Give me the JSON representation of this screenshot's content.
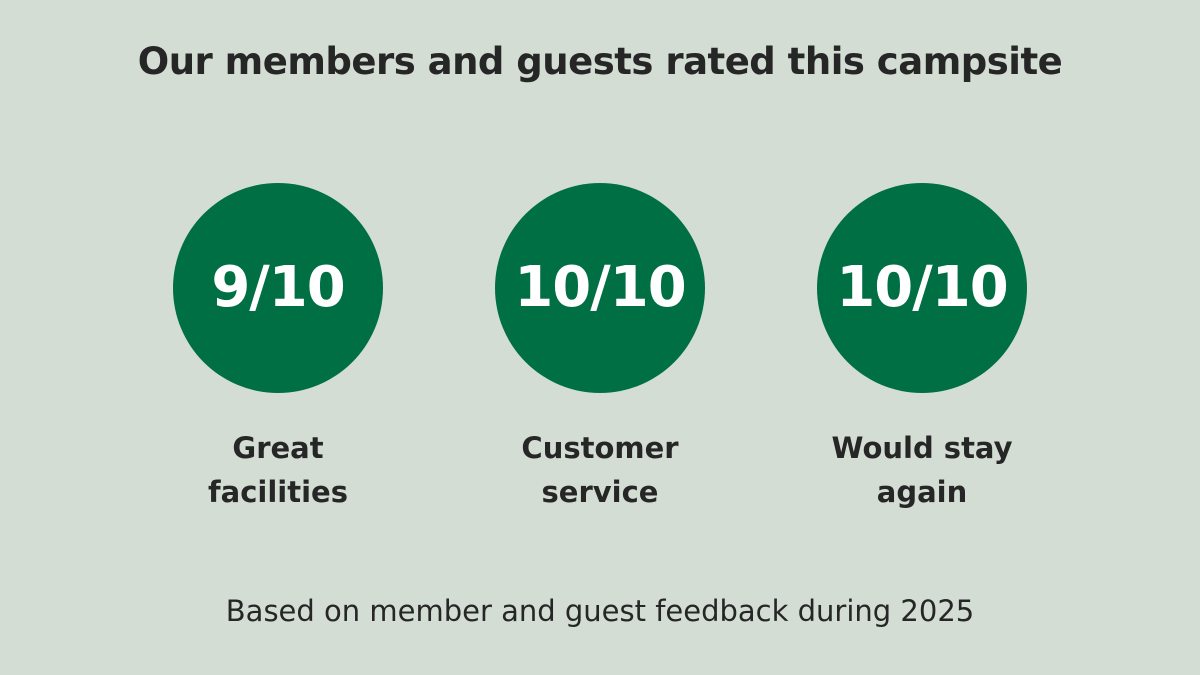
{
  "header": {
    "title": "Our members and guests rated this campsite"
  },
  "ratings": [
    {
      "score": "9/10",
      "label": [
        "Great",
        "facilities"
      ]
    },
    {
      "score": "10/10",
      "label": [
        "Customer",
        "service"
      ]
    },
    {
      "score": "10/10",
      "label": [
        "Would stay",
        "again"
      ]
    }
  ],
  "footer": {
    "note": "Based on member and guest feedback during 2025"
  }
}
